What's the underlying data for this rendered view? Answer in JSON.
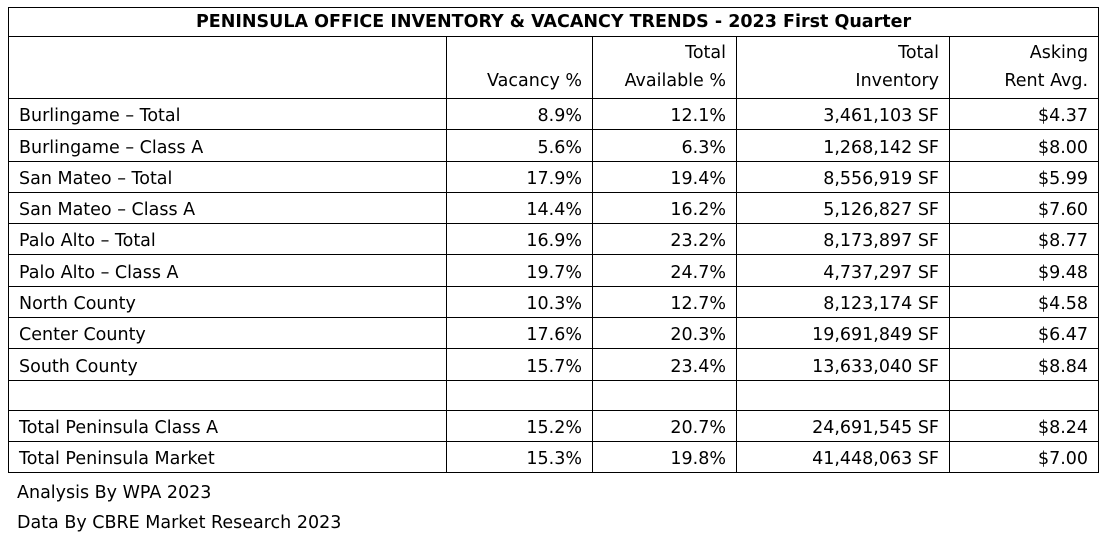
{
  "title": "PENINSULA OFFICE INVENTORY & VACANCY TRENDS - 2023 First Quarter",
  "columns": [
    {
      "line1": "",
      "line2": ""
    },
    {
      "line1": "",
      "line2": "Vacancy %"
    },
    {
      "line1": "Total",
      "line2": "Available %"
    },
    {
      "line1": "Total",
      "line2": "Inventory"
    },
    {
      "line1": "Asking",
      "line2": "Rent Avg."
    }
  ],
  "rows": [
    {
      "name": "Burlingame – Total",
      "vacancy": "8.9%",
      "available": "12.1%",
      "inventory": "3,461,103 SF",
      "rent": "$4.37"
    },
    {
      "name": "Burlingame – Class A",
      "vacancy": "5.6%",
      "available": "6.3%",
      "inventory": "1,268,142 SF",
      "rent": "$8.00"
    },
    {
      "name": "San Mateo – Total",
      "vacancy": "17.9%",
      "available": "19.4%",
      "inventory": "8,556,919 SF",
      "rent": "$5.99"
    },
    {
      "name": "San Mateo – Class A",
      "vacancy": "14.4%",
      "available": "16.2%",
      "inventory": "5,126,827 SF",
      "rent": "$7.60"
    },
    {
      "name": "Palo Alto – Total",
      "vacancy": "16.9%",
      "available": "23.2%",
      "inventory": "8,173,897 SF",
      "rent": "$8.77"
    },
    {
      "name": "Palo Alto – Class A",
      "vacancy": "19.7%",
      "available": "24.7%",
      "inventory": "4,737,297 SF",
      "rent": "$9.48"
    },
    {
      "name": "North County",
      "vacancy": "10.3%",
      "available": "12.7%",
      "inventory": "8,123,174 SF",
      "rent": "$4.58"
    },
    {
      "name": "Center County",
      "vacancy": "17.6%",
      "available": "20.3%",
      "inventory": "19,691,849 SF",
      "rent": "$6.47"
    },
    {
      "name": "South County",
      "vacancy": "15.7%",
      "available": "23.4%",
      "inventory": "13,633,040 SF",
      "rent": "$8.84"
    }
  ],
  "totals": [
    {
      "name": "Total Peninsula Class A",
      "vacancy": "15.2%",
      "available": "20.7%",
      "inventory": "24,691,545 SF",
      "rent": "$8.24"
    },
    {
      "name": "Total Peninsula Market",
      "vacancy": "15.3%",
      "available": "19.8%",
      "inventory": "41,448,063 SF",
      "rent": "$7.00"
    }
  ],
  "notes": {
    "analysis": "Analysis By WPA 2023",
    "data_source": "Data By CBRE Market Research 2023"
  }
}
